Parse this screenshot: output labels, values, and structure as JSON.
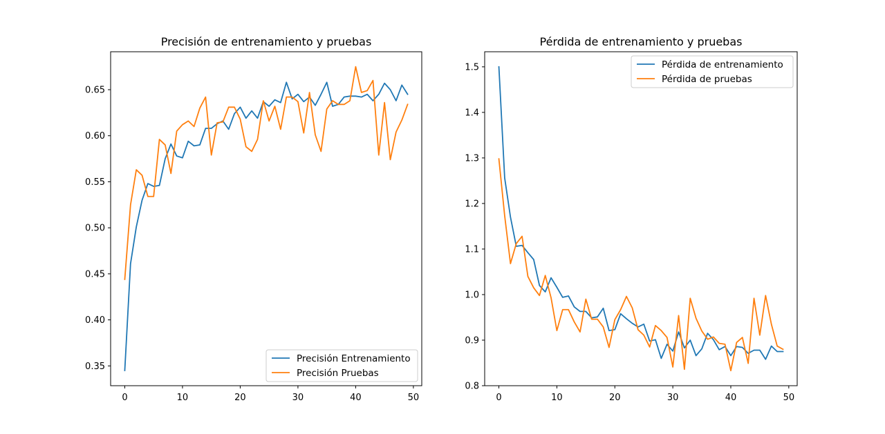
{
  "chart_data": [
    {
      "type": "line",
      "title": "Precisión de entrenamiento y pruebas",
      "xlabel": "",
      "ylabel": "",
      "xlim": [
        -2.45,
        51.45
      ],
      "ylim": [
        0.3285,
        0.6912
      ],
      "xticks": [
        0,
        10,
        20,
        30,
        40,
        50
      ],
      "yticks": [
        0.35,
        0.4,
        0.45,
        0.5,
        0.55,
        0.6,
        0.65
      ],
      "ytick_labels": [
        "0.35",
        "0.40",
        "0.45",
        "0.50",
        "0.55",
        "0.60",
        "0.65"
      ],
      "grid": false,
      "legend_position": "lower right",
      "x": [
        0,
        1,
        2,
        3,
        4,
        5,
        6,
        7,
        8,
        9,
        10,
        11,
        12,
        13,
        14,
        15,
        16,
        17,
        18,
        19,
        20,
        21,
        22,
        23,
        24,
        25,
        26,
        27,
        28,
        29,
        30,
        31,
        32,
        33,
        34,
        35,
        36,
        37,
        38,
        39,
        40,
        41,
        42,
        43,
        44,
        45,
        46,
        47,
        48,
        49
      ],
      "series": [
        {
          "name": "Precisión Entrenamiento",
          "color": "#1f77b4",
          "values": [
            0.345,
            0.461,
            0.501,
            0.53,
            0.548,
            0.545,
            0.546,
            0.575,
            0.591,
            0.578,
            0.576,
            0.594,
            0.589,
            0.59,
            0.608,
            0.608,
            0.613,
            0.616,
            0.607,
            0.624,
            0.631,
            0.619,
            0.627,
            0.619,
            0.637,
            0.632,
            0.639,
            0.636,
            0.658,
            0.64,
            0.645,
            0.637,
            0.642,
            0.633,
            0.645,
            0.658,
            0.632,
            0.634,
            0.642,
            0.643,
            0.643,
            0.642,
            0.645,
            0.638,
            0.645,
            0.657,
            0.65,
            0.638,
            0.655,
            0.645
          ]
        },
        {
          "name": "Precisión Pruebas",
          "color": "#ff7f0e",
          "values": [
            0.444,
            0.525,
            0.563,
            0.557,
            0.534,
            0.534,
            0.596,
            0.59,
            0.559,
            0.605,
            0.612,
            0.616,
            0.61,
            0.63,
            0.642,
            0.579,
            0.614,
            0.615,
            0.631,
            0.631,
            0.618,
            0.588,
            0.583,
            0.596,
            0.638,
            0.616,
            0.632,
            0.607,
            0.642,
            0.642,
            0.637,
            0.603,
            0.647,
            0.601,
            0.583,
            0.629,
            0.638,
            0.634,
            0.634,
            0.638,
            0.675,
            0.647,
            0.649,
            0.66,
            0.579,
            0.636,
            0.574,
            0.604,
            0.617,
            0.634
          ]
        }
      ]
    },
    {
      "type": "line",
      "title": "Pérdida de entrenamiento y pruebas",
      "xlabel": "",
      "ylabel": "",
      "xlim": [
        -2.45,
        51.45
      ],
      "ylim": [
        0.8,
        1.5331
      ],
      "xticks": [
        0,
        10,
        20,
        30,
        40,
        50
      ],
      "yticks": [
        0.8,
        0.9,
        1.0,
        1.1,
        1.2,
        1.3,
        1.4,
        1.5
      ],
      "ytick_labels": [
        "0.8",
        "0.9",
        "1.0",
        "1.1",
        "1.2",
        "1.3",
        "1.4",
        "1.5"
      ],
      "grid": false,
      "legend_position": "upper right",
      "x": [
        0,
        1,
        2,
        3,
        4,
        5,
        6,
        7,
        8,
        9,
        10,
        11,
        12,
        13,
        14,
        15,
        16,
        17,
        18,
        19,
        20,
        21,
        22,
        23,
        24,
        25,
        26,
        27,
        28,
        29,
        30,
        31,
        32,
        33,
        34,
        35,
        36,
        37,
        38,
        39,
        40,
        41,
        42,
        43,
        44,
        45,
        46,
        47,
        48,
        49
      ],
      "series": [
        {
          "name": "Pérdida de entrenamiento",
          "color": "#1f77b4",
          "values": [
            1.5,
            1.256,
            1.17,
            1.106,
            1.108,
            1.092,
            1.077,
            1.02,
            1.006,
            1.037,
            1.016,
            0.994,
            0.997,
            0.973,
            0.963,
            0.963,
            0.949,
            0.951,
            0.97,
            0.921,
            0.923,
            0.958,
            0.947,
            0.937,
            0.929,
            0.935,
            0.898,
            0.901,
            0.86,
            0.891,
            0.876,
            0.918,
            0.883,
            0.9,
            0.866,
            0.881,
            0.915,
            0.901,
            0.879,
            0.886,
            0.866,
            0.886,
            0.884,
            0.871,
            0.878,
            0.878,
            0.858,
            0.887,
            0.875,
            0.875
          ]
        },
        {
          "name": "Pérdida de pruebas",
          "color": "#ff7f0e",
          "values": [
            1.298,
            1.173,
            1.068,
            1.112,
            1.128,
            1.04,
            1.015,
            0.998,
            1.042,
            0.993,
            0.921,
            0.967,
            0.967,
            0.94,
            0.918,
            0.99,
            0.946,
            0.946,
            0.929,
            0.884,
            0.945,
            0.967,
            0.996,
            0.971,
            0.923,
            0.911,
            0.885,
            0.932,
            0.921,
            0.906,
            0.841,
            0.954,
            0.836,
            0.992,
            0.948,
            0.92,
            0.902,
            0.907,
            0.893,
            0.891,
            0.833,
            0.895,
            0.906,
            0.849,
            0.992,
            0.911,
            0.998,
            0.935,
            0.887,
            0.88
          ]
        }
      ]
    }
  ]
}
